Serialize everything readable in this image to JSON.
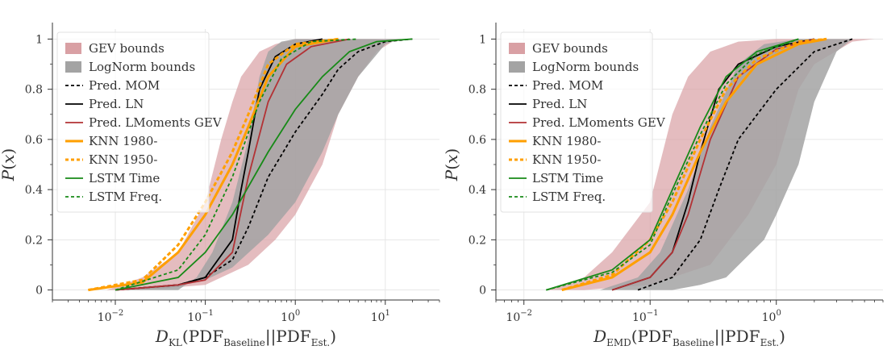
{
  "chart_data": [
    {
      "type": "line",
      "subtype": "ecdf",
      "x_scale": "log",
      "xlim": [
        0.002,
        40
      ],
      "ylim": [
        -0.04,
        1.04
      ],
      "grid": true,
      "legend_position": "top-left",
      "xlabel": "D_KL(PDF_Baseline||PDF_Est.)",
      "xlabel_parts": {
        "sym": "D",
        "sub": "KL",
        "open": "(PDF",
        "sub2": "Baseline",
        "mid": "||PDF",
        "sub3": "Est.",
        "close": ")"
      },
      "ylabel": "P(x)",
      "xticks": [
        0.01,
        0.1,
        1,
        10
      ],
      "xtick_labels": [
        {
          "base": "10",
          "exp": "−2"
        },
        {
          "base": "10",
          "exp": "−1"
        },
        {
          "base": "10",
          "exp": "0"
        },
        {
          "base": "10",
          "exp": "1"
        }
      ],
      "yticks": [
        0,
        0.2,
        0.4,
        0.6,
        0.8,
        1
      ],
      "ytick_labels": [
        "0",
        "0.2",
        "0.4",
        "0.6",
        "0.8",
        "1"
      ],
      "bands": [
        {
          "name": "GEV bounds",
          "color": "#d9a0a4",
          "lower": [
            [
              0.02,
              0
            ],
            [
              0.1,
              0.02
            ],
            [
              0.3,
              0.1
            ],
            [
              0.6,
              0.2
            ],
            [
              1,
              0.3
            ],
            [
              2,
              0.5
            ],
            [
              3,
              0.7
            ],
            [
              5,
              0.85
            ],
            [
              8,
              0.95
            ],
            [
              12,
              0.99
            ],
            [
              20,
              1
            ]
          ],
          "upper": [
            [
              0.008,
              0
            ],
            [
              0.02,
              0.05
            ],
            [
              0.05,
              0.15
            ],
            [
              0.1,
              0.35
            ],
            [
              0.15,
              0.6
            ],
            [
              0.2,
              0.75
            ],
            [
              0.25,
              0.85
            ],
            [
              0.4,
              0.95
            ],
            [
              0.6,
              0.98
            ],
            [
              1,
              1
            ]
          ]
        },
        {
          "name": "LogNorm bounds",
          "color": "#a3a3a3",
          "lower": [
            [
              0.01,
              0
            ],
            [
              0.05,
              0.02
            ],
            [
              0.1,
              0.04
            ],
            [
              0.2,
              0.09
            ],
            [
              0.5,
              0.22
            ],
            [
              1,
              0.35
            ],
            [
              2,
              0.55
            ],
            [
              3,
              0.7
            ],
            [
              5,
              0.85
            ],
            [
              10,
              0.98
            ],
            [
              15,
              1
            ]
          ],
          "upper": [
            [
              0.05,
              0
            ],
            [
              0.08,
              0.05
            ],
            [
              0.12,
              0.15
            ],
            [
              0.2,
              0.35
            ],
            [
              0.3,
              0.6
            ],
            [
              0.4,
              0.85
            ],
            [
              0.5,
              0.95
            ],
            [
              0.7,
              0.99
            ],
            [
              1,
              1
            ]
          ]
        }
      ],
      "series": [
        {
          "name": "Pred. MOM",
          "color": "#000000",
          "dash": true,
          "points": [
            [
              0.01,
              0
            ],
            [
              0.05,
              0.02
            ],
            [
              0.1,
              0.05
            ],
            [
              0.2,
              0.12
            ],
            [
              0.3,
              0.25
            ],
            [
              0.5,
              0.45
            ],
            [
              1,
              0.63
            ],
            [
              2,
              0.78
            ],
            [
              3,
              0.88
            ],
            [
              5,
              0.95
            ],
            [
              10,
              0.99
            ],
            [
              20,
              1
            ]
          ]
        },
        {
          "name": "Pred. LN",
          "color": "#000000",
          "dash": false,
          "points": [
            [
              0.01,
              0
            ],
            [
              0.05,
              0.02
            ],
            [
              0.1,
              0.05
            ],
            [
              0.2,
              0.2
            ],
            [
              0.25,
              0.4
            ],
            [
              0.3,
              0.55
            ],
            [
              0.4,
              0.8
            ],
            [
              0.6,
              0.93
            ],
            [
              1,
              0.98
            ],
            [
              2,
              1
            ]
          ]
        },
        {
          "name": "Pred. LMoments GEV",
          "color": "#b33235",
          "dash": false,
          "points": [
            [
              0.01,
              0
            ],
            [
              0.05,
              0.02
            ],
            [
              0.1,
              0.04
            ],
            [
              0.2,
              0.15
            ],
            [
              0.3,
              0.45
            ],
            [
              0.5,
              0.75
            ],
            [
              0.8,
              0.9
            ],
            [
              1.5,
              0.97
            ],
            [
              4,
              1
            ]
          ]
        },
        {
          "name": "KNN 1980-",
          "color": "#ff9f00",
          "dash": false,
          "width": 3,
          "points": [
            [
              0.005,
              0
            ],
            [
              0.02,
              0.03
            ],
            [
              0.05,
              0.15
            ],
            [
              0.1,
              0.3
            ],
            [
              0.2,
              0.5
            ],
            [
              0.3,
              0.65
            ],
            [
              0.5,
              0.85
            ],
            [
              1,
              0.97
            ],
            [
              3,
              1
            ]
          ]
        },
        {
          "name": "KNN 1950-",
          "color": "#ff9f00",
          "dash": true,
          "width": 3,
          "points": [
            [
              0.005,
              0
            ],
            [
              0.02,
              0.04
            ],
            [
              0.05,
              0.18
            ],
            [
              0.1,
              0.35
            ],
            [
              0.2,
              0.55
            ],
            [
              0.3,
              0.7
            ],
            [
              0.5,
              0.9
            ],
            [
              1,
              0.98
            ],
            [
              3,
              1
            ]
          ]
        },
        {
          "name": "LSTM Time",
          "color": "#178a17",
          "dash": false,
          "points": [
            [
              0.01,
              0
            ],
            [
              0.05,
              0.05
            ],
            [
              0.1,
              0.15
            ],
            [
              0.2,
              0.3
            ],
            [
              0.5,
              0.55
            ],
            [
              1,
              0.72
            ],
            [
              2,
              0.85
            ],
            [
              4,
              0.95
            ],
            [
              8,
              0.99
            ],
            [
              20,
              1
            ]
          ]
        },
        {
          "name": "LSTM Freq.",
          "color": "#178a17",
          "dash": true,
          "points": [
            [
              0.01,
              0
            ],
            [
              0.05,
              0.08
            ],
            [
              0.1,
              0.22
            ],
            [
              0.2,
              0.45
            ],
            [
              0.4,
              0.75
            ],
            [
              0.7,
              0.92
            ],
            [
              1.5,
              0.99
            ],
            [
              5,
              1
            ]
          ]
        }
      ]
    },
    {
      "type": "line",
      "subtype": "ecdf",
      "x_scale": "log",
      "xlim": [
        0.006,
        7
      ],
      "ylim": [
        -0.04,
        1.04
      ],
      "grid": true,
      "legend_position": "top-left",
      "xlabel": "D_EMD(PDF_Baseline||PDF_Est.)",
      "xlabel_parts": {
        "sym": "D",
        "sub": "EMD",
        "open": "(PDF",
        "sub2": "Baseline",
        "mid": "||PDF",
        "sub3": "Est.",
        "close": ")"
      },
      "ylabel": "P(x)",
      "xticks": [
        0.01,
        0.1,
        1
      ],
      "xtick_labels": [
        {
          "base": "10",
          "exp": "−2"
        },
        {
          "base": "10",
          "exp": "−1"
        },
        {
          "base": "10",
          "exp": "0"
        }
      ],
      "yticks": [
        0,
        0.2,
        0.4,
        0.6,
        0.8,
        1
      ],
      "ytick_labels": [
        "0",
        "0.2",
        "0.4",
        "0.6",
        "0.8",
        "1"
      ],
      "bands": [
        {
          "name": "GEV bounds",
          "color": "#d9a0a4",
          "lower": [
            [
              0.03,
              0
            ],
            [
              0.1,
              0.02
            ],
            [
              0.3,
              0.1
            ],
            [
              0.6,
              0.3
            ],
            [
              1,
              0.5
            ],
            [
              1.5,
              0.8
            ],
            [
              2,
              0.9
            ],
            [
              4,
              0.99
            ],
            [
              6,
              1
            ]
          ],
          "upper": [
            [
              0.015,
              0
            ],
            [
              0.03,
              0.05
            ],
            [
              0.05,
              0.15
            ],
            [
              0.1,
              0.35
            ],
            [
              0.15,
              0.7
            ],
            [
              0.2,
              0.85
            ],
            [
              0.3,
              0.95
            ],
            [
              0.5,
              0.99
            ],
            [
              1,
              1
            ]
          ]
        },
        {
          "name": "LogNorm bounds",
          "color": "#a3a3a3",
          "lower": [
            [
              0.15,
              0
            ],
            [
              0.25,
              0.02
            ],
            [
              0.4,
              0.05
            ],
            [
              0.8,
              0.2
            ],
            [
              1,
              0.3
            ],
            [
              1.5,
              0.5
            ],
            [
              2,
              0.75
            ],
            [
              3,
              0.95
            ],
            [
              4,
              1
            ]
          ],
          "upper": [
            [
              0.04,
              0
            ],
            [
              0.08,
              0.05
            ],
            [
              0.12,
              0.15
            ],
            [
              0.2,
              0.4
            ],
            [
              0.3,
              0.65
            ],
            [
              0.5,
              0.9
            ],
            [
              0.8,
              0.98
            ],
            [
              1.5,
              1
            ]
          ]
        }
      ],
      "series": [
        {
          "name": "Pred. MOM",
          "color": "#000000",
          "dash": true,
          "points": [
            [
              0.08,
              0
            ],
            [
              0.15,
              0.05
            ],
            [
              0.25,
              0.2
            ],
            [
              0.35,
              0.4
            ],
            [
              0.5,
              0.6
            ],
            [
              1,
              0.8
            ],
            [
              2,
              0.95
            ],
            [
              4,
              1
            ]
          ]
        },
        {
          "name": "Pred. LN",
          "color": "#000000",
          "dash": false,
          "points": [
            [
              0.05,
              0
            ],
            [
              0.1,
              0.05
            ],
            [
              0.15,
              0.15
            ],
            [
              0.2,
              0.35
            ],
            [
              0.25,
              0.55
            ],
            [
              0.35,
              0.8
            ],
            [
              0.5,
              0.9
            ],
            [
              1,
              0.97
            ],
            [
              2,
              1
            ]
          ]
        },
        {
          "name": "Pred. LMoments GEV",
          "color": "#b33235",
          "dash": false,
          "points": [
            [
              0.05,
              0
            ],
            [
              0.1,
              0.05
            ],
            [
              0.15,
              0.15
            ],
            [
              0.2,
              0.3
            ],
            [
              0.3,
              0.6
            ],
            [
              0.5,
              0.85
            ],
            [
              1,
              0.96
            ],
            [
              2,
              1
            ]
          ]
        },
        {
          "name": "KNN 1980-",
          "color": "#ff9f00",
          "dash": false,
          "width": 3,
          "points": [
            [
              0.02,
              0
            ],
            [
              0.05,
              0.05
            ],
            [
              0.1,
              0.15
            ],
            [
              0.15,
              0.3
            ],
            [
              0.25,
              0.55
            ],
            [
              0.4,
              0.75
            ],
            [
              0.7,
              0.9
            ],
            [
              1.5,
              0.98
            ],
            [
              2.5,
              1
            ]
          ]
        },
        {
          "name": "KNN 1950-",
          "color": "#ff9f00",
          "dash": true,
          "width": 3,
          "points": [
            [
              0.02,
              0
            ],
            [
              0.05,
              0.06
            ],
            [
              0.1,
              0.2
            ],
            [
              0.15,
              0.35
            ],
            [
              0.25,
              0.6
            ],
            [
              0.4,
              0.8
            ],
            [
              0.7,
              0.92
            ],
            [
              1.5,
              0.99
            ],
            [
              2.5,
              1
            ]
          ]
        },
        {
          "name": "LSTM Time",
          "color": "#178a17",
          "dash": false,
          "points": [
            [
              0.015,
              0
            ],
            [
              0.05,
              0.08
            ],
            [
              0.1,
              0.2
            ],
            [
              0.15,
              0.4
            ],
            [
              0.25,
              0.65
            ],
            [
              0.4,
              0.85
            ],
            [
              0.7,
              0.95
            ],
            [
              1.5,
              1
            ]
          ]
        },
        {
          "name": "LSTM Freq.",
          "color": "#178a17",
          "dash": true,
          "points": [
            [
              0.015,
              0
            ],
            [
              0.05,
              0.07
            ],
            [
              0.1,
              0.18
            ],
            [
              0.15,
              0.38
            ],
            [
              0.25,
              0.62
            ],
            [
              0.4,
              0.82
            ],
            [
              0.7,
              0.94
            ],
            [
              1.5,
              1
            ]
          ]
        }
      ]
    }
  ]
}
